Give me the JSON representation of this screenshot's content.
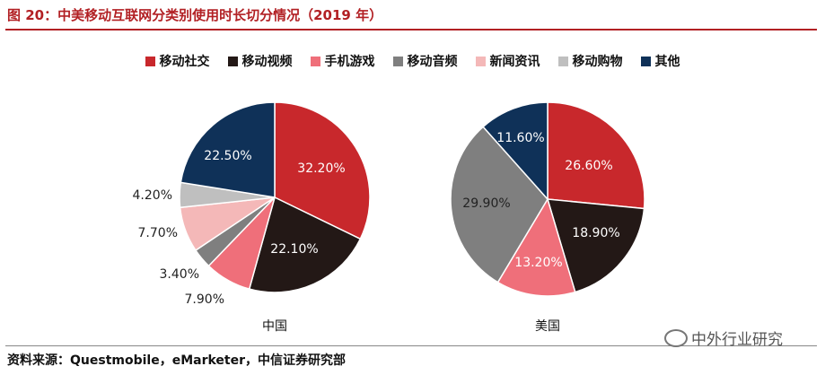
{
  "title": "图 20：中美移动互联网分类别使用时长切分情况（2019 年）",
  "source": "资料来源：Questmobile，eMarketer，中信证券研究部",
  "watermark": "中外行业研究",
  "legend": [
    {
      "name": "移动社交",
      "color": "#c8282c"
    },
    {
      "name": "移动视频",
      "color": "#231816"
    },
    {
      "name": "手机游戏",
      "color": "#ef6f7a"
    },
    {
      "name": "移动音频",
      "color": "#7f7f7f"
    },
    {
      "name": "新闻资讯",
      "color": "#f4b8b8"
    },
    {
      "name": "移动购物",
      "color": "#bfbfbf"
    },
    {
      "name": "其他",
      "color": "#0f3158"
    }
  ],
  "chart_data": [
    {
      "type": "pie",
      "title": "中国",
      "slices": [
        {
          "name": "移动社交",
          "value": 32.2,
          "label": "32.20%"
        },
        {
          "name": "移动视频",
          "value": 22.1,
          "label": "22.10%"
        },
        {
          "name": "手机游戏",
          "value": 7.9,
          "label": "7.90%"
        },
        {
          "name": "移动音频",
          "value": 3.4,
          "label": "3.40%"
        },
        {
          "name": "新闻资讯",
          "value": 7.7,
          "label": "7.70%"
        },
        {
          "name": "移动购物",
          "value": 4.2,
          "label": "4.20%"
        },
        {
          "name": "其他",
          "value": 22.5,
          "label": "22.50%"
        }
      ]
    },
    {
      "type": "pie",
      "title": "美国",
      "slices": [
        {
          "name": "移动社交",
          "value": 26.6,
          "label": "26.60%"
        },
        {
          "name": "移动视频",
          "value": 18.9,
          "label": "18.90%"
        },
        {
          "name": "手机游戏",
          "value": 13.2,
          "label": "13.20%"
        },
        {
          "name": "移动音频",
          "value": 29.9,
          "label": "29.90%"
        },
        {
          "name": "其他",
          "value": 11.6,
          "label": "11.60%"
        }
      ]
    }
  ]
}
